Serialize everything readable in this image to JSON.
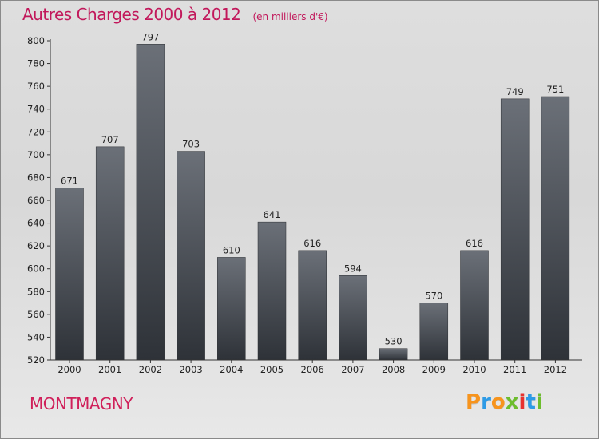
{
  "chart_data": {
    "type": "bar",
    "title": "Autres Charges 2000 à 2012",
    "unit": "(en milliers d'€)",
    "categories": [
      "2000",
      "2001",
      "2002",
      "2003",
      "2004",
      "2005",
      "2006",
      "2007",
      "2008",
      "2009",
      "2010",
      "2011",
      "2012"
    ],
    "values": [
      671,
      707,
      797,
      703,
      610,
      641,
      616,
      594,
      530,
      570,
      616,
      749,
      751
    ],
    "ylim": [
      520,
      800
    ],
    "yticks": [
      520,
      540,
      560,
      580,
      600,
      620,
      640,
      660,
      680,
      700,
      720,
      740,
      760,
      780,
      800
    ],
    "grid": false,
    "xlabel": "",
    "ylabel": ""
  },
  "city": "MONTMAGNY",
  "brand": {
    "letters": [
      "P",
      "r",
      "o",
      "x",
      "i",
      "t",
      "i"
    ],
    "colors": [
      "#f7941d",
      "#2e9be6",
      "#f7941d",
      "#6dbd2d",
      "#e8322f",
      "#2e9be6",
      "#6dbd2d"
    ]
  },
  "colors": {
    "title": "#c2185b",
    "bar_top": "#6b7078",
    "bar_bottom": "#2e3238",
    "axis": "#333333"
  }
}
